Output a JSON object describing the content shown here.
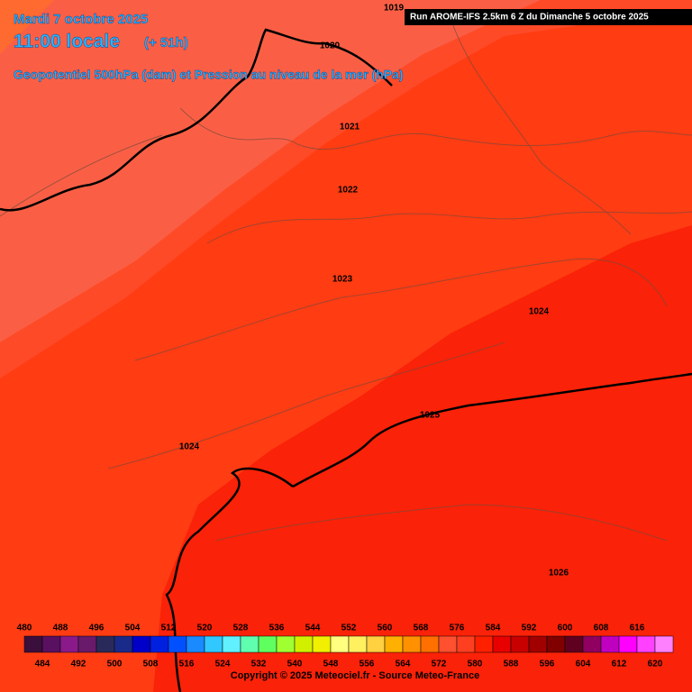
{
  "header": {
    "date": "Mardi 7 octobre 2025",
    "time": "11:00 locale",
    "lead": "(+ 51h)",
    "title": "Geopotentiel 500hPa (dam) et Pression au niveau de la mer (hPa)",
    "run": "Run AROME-IFS 2.5km 6 Z du Dimanche 5 octobre 2025"
  },
  "isobar_labels": [
    "1019",
    "1020",
    "1021",
    "1022",
    "1023",
    "1024",
    "1025",
    "1024",
    "1026"
  ],
  "colorbar": {
    "top_labels": [
      480,
      488,
      496,
      504,
      512,
      520,
      528,
      536,
      544,
      552,
      560,
      568,
      576,
      584,
      592,
      600,
      608,
      616
    ],
    "bottom_labels": [
      484,
      492,
      500,
      508,
      516,
      524,
      532,
      540,
      548,
      556,
      564,
      572,
      580,
      588,
      596,
      604,
      612,
      620
    ],
    "colors": [
      "#3b0f3b",
      "#5a1060",
      "#8a1a8a",
      "#6a1a6a",
      "#2a2a5a",
      "#1a2a8a",
      "#0000c8",
      "#0020e0",
      "#0050ff",
      "#1a8aff",
      "#30c8ff",
      "#60f0ff",
      "#60ffb0",
      "#60ff60",
      "#a0ff30",
      "#d0f000",
      "#f0f000",
      "#ffff80",
      "#fff060",
      "#ffd040",
      "#ffb000",
      "#ff9000",
      "#ff7000",
      "#ff5030",
      "#ff4020",
      "#ff2000",
      "#e80000",
      "#c80000",
      "#a00000",
      "#800000",
      "#600020",
      "#900060",
      "#c000c0",
      "#ff00ff",
      "#ff40ff",
      "#ff80ff"
    ]
  },
  "copyright": "Copyright © 2025 Meteociel.fr - Source Meteo-France"
}
